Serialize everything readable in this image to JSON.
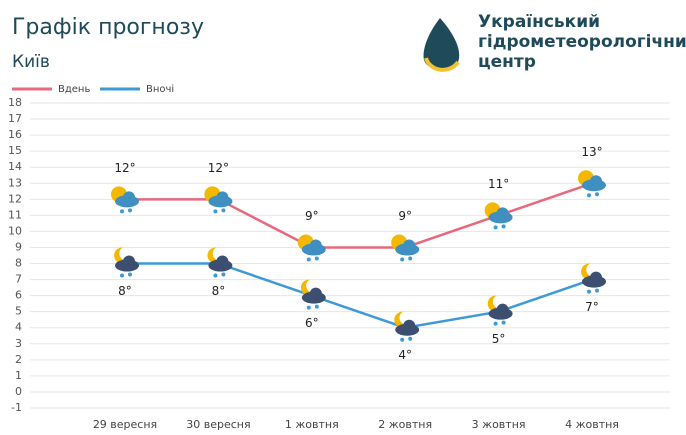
{
  "chart_data": {
    "type": "line",
    "title": "Графік прогнозу",
    "subtitle": "Київ",
    "categories": [
      "29 вересня",
      "30 вересня",
      "1 жовтня",
      "2 жовтня",
      "3 жовтня",
      "4 жовтня"
    ],
    "series": [
      {
        "name": "Вдень",
        "color": "#e8697d",
        "values": [
          12,
          12,
          9,
          9,
          11,
          13
        ],
        "value_labels": [
          "12°",
          "12°",
          "9°",
          "9°",
          "11°",
          "13°"
        ]
      },
      {
        "name": "Вночі",
        "color": "#3d9ad6",
        "values": [
          8,
          8,
          6,
          4,
          5,
          7
        ],
        "value_labels": [
          "8°",
          "8°",
          "6°",
          "4°",
          "5°",
          "7°"
        ]
      }
    ],
    "ylim": [
      -1,
      18
    ],
    "yticks": [
      -1,
      0,
      1,
      2,
      3,
      4,
      5,
      6,
      7,
      8,
      9,
      10,
      11,
      12,
      13,
      14,
      15,
      16,
      17,
      18
    ],
    "grid": true,
    "legend": "top-left"
  },
  "logo": {
    "lines": [
      "Український",
      "гідрометеорологічний",
      "центр"
    ]
  }
}
